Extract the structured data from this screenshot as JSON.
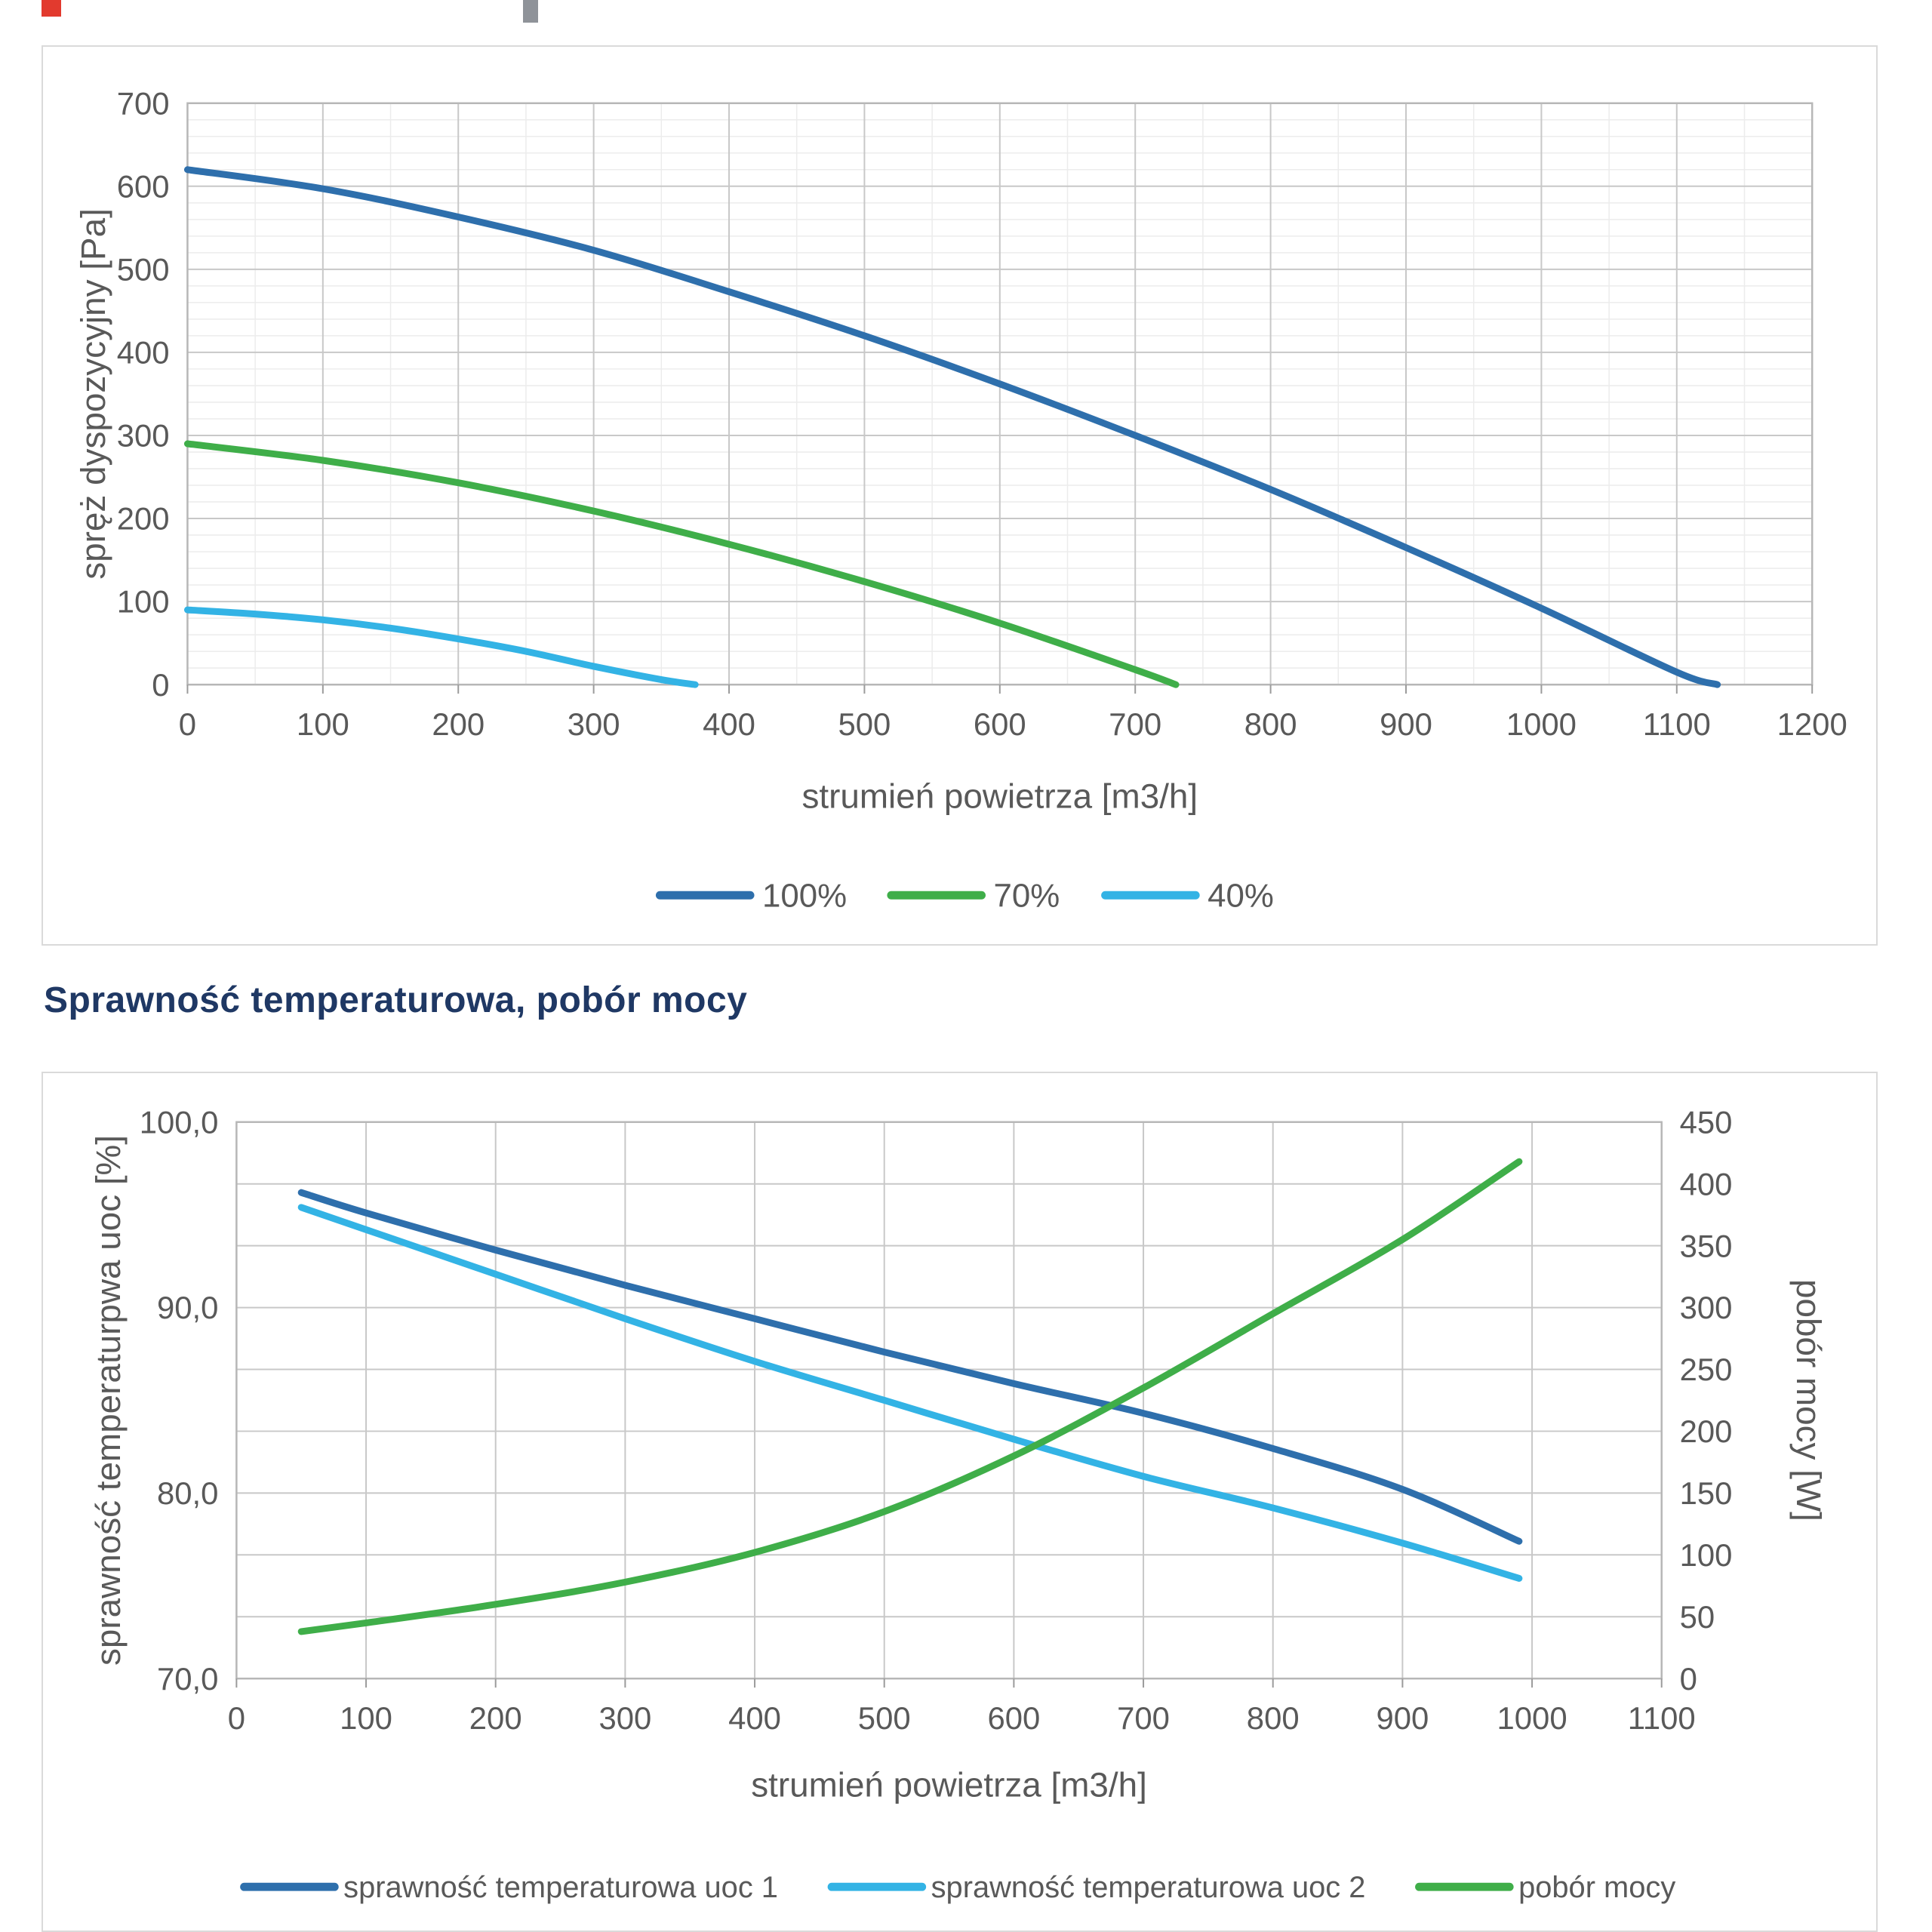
{
  "section_title": "Sprawność temperaturowa, pobór mocy",
  "colors": {
    "dark_blue": "#2e6fac",
    "green": "#3fae49",
    "light_blue": "#33b3e5",
    "grid_major": "#c8c8c8",
    "grid_minor": "#ececec",
    "plot_border": "#b7b7b7",
    "text": "#595959",
    "title": "#1f3864"
  },
  "chart_data": [
    {
      "type": "line",
      "title": "",
      "xlabel": "strumień powietrza [m3/h]",
      "ylabel": "spręż dyspozycyjny [Pa]",
      "xlim": [
        0,
        1200
      ],
      "xstep": 100,
      "ylim": [
        0,
        700
      ],
      "ystep": 100,
      "grid": true,
      "legend_position": "bottom",
      "series": [
        {
          "name": "100%",
          "color": "#2e6fac",
          "x": [
            0,
            100,
            200,
            300,
            400,
            500,
            600,
            700,
            800,
            900,
            1000,
            1100,
            1130
          ],
          "y": [
            620,
            597,
            563,
            523,
            473,
            420,
            362,
            300,
            235,
            165,
            92,
            15,
            0
          ]
        },
        {
          "name": "70%",
          "color": "#3fae49",
          "x": [
            0,
            100,
            200,
            300,
            400,
            500,
            600,
            700,
            730
          ],
          "y": [
            290,
            270,
            243,
            209,
            169,
            124,
            74,
            18,
            0
          ]
        },
        {
          "name": "40%",
          "color": "#33b3e5",
          "x": [
            0,
            50,
            100,
            150,
            200,
            250,
            300,
            350,
            375
          ],
          "y": [
            90,
            85,
            78,
            68,
            55,
            40,
            22,
            6,
            0
          ]
        }
      ]
    },
    {
      "type": "line",
      "title": "Sprawność temperaturowa, pobór mocy",
      "xlabel": "strumień powietrza [m3/h]",
      "ylabel_left": "sprawność temperaturpwa uoc [%]",
      "ylabel_right": "pobór mocy [W]",
      "xlim": [
        0,
        1100
      ],
      "xstep": 100,
      "ylim_left": [
        70,
        100
      ],
      "ystep_left": 10,
      "ytick_labels_left": [
        "70,0",
        "80,0",
        "90,0",
        "100,0"
      ],
      "ylim_right": [
        0,
        450
      ],
      "ystep_right": 50,
      "grid": true,
      "legend_position": "bottom",
      "series": [
        {
          "name": "sprawność temperaturowa uoc 1",
          "axis": "left",
          "color": "#2e6fac",
          "x": [
            50,
            100,
            200,
            300,
            400,
            500,
            600,
            700,
            800,
            900,
            990
          ],
          "y": [
            96.2,
            95.1,
            93.1,
            91.2,
            89.4,
            87.6,
            85.9,
            84.3,
            82.4,
            80.2,
            77.4
          ]
        },
        {
          "name": "sprawność temperaturowa uoc 2",
          "axis": "left",
          "color": "#33b3e5",
          "x": [
            50,
            100,
            200,
            300,
            400,
            500,
            600,
            700,
            800,
            900,
            990
          ],
          "y": [
            95.4,
            94.2,
            91.8,
            89.4,
            87.1,
            85.0,
            82.9,
            80.9,
            79.2,
            77.3,
            75.4
          ]
        },
        {
          "name": "pobór mocy",
          "axis": "right",
          "color": "#3fae49",
          "x": [
            50,
            100,
            200,
            300,
            400,
            500,
            600,
            700,
            800,
            900,
            990
          ],
          "y": [
            38,
            45,
            60,
            78,
            102,
            135,
            180,
            235,
            295,
            355,
            418
          ]
        }
      ]
    }
  ]
}
